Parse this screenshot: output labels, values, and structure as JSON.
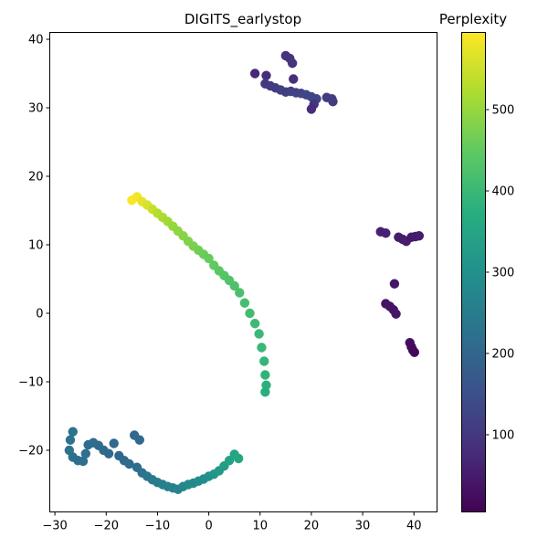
{
  "chart_data": {
    "type": "scatter",
    "title": "DIGITS_earlystop",
    "xlabel": "",
    "ylabel": "",
    "xlim": [
      -31,
      44.5
    ],
    "ylim": [
      -29,
      41
    ],
    "xticks": [
      -30,
      -20,
      -10,
      0,
      10,
      20,
      30,
      40
    ],
    "yticks": [
      -20,
      -10,
      0,
      10,
      20,
      30,
      40
    ],
    "grid": false,
    "colormap": "viridis",
    "colorbar": {
      "label": "Perplexity",
      "range": [
        5,
        595
      ],
      "ticks": [
        100,
        200,
        300,
        400,
        500
      ]
    },
    "series": [
      {
        "points": [
          {
            "x": 15,
            "y": 37.6,
            "c": 90
          },
          {
            "x": 15.8,
            "y": 37.2,
            "c": 92
          },
          {
            "x": 16.3,
            "y": 36.5,
            "c": 94
          },
          {
            "x": 9,
            "y": 35,
            "c": 70
          },
          {
            "x": 11.2,
            "y": 34.7,
            "c": 80
          },
          {
            "x": 16.5,
            "y": 34.2,
            "c": 85
          },
          {
            "x": 11,
            "y": 33.5,
            "c": 100
          },
          {
            "x": 12,
            "y": 33.2,
            "c": 105
          },
          {
            "x": 13,
            "y": 32.9,
            "c": 110
          },
          {
            "x": 14,
            "y": 32.6,
            "c": 112
          },
          {
            "x": 15,
            "y": 32.3,
            "c": 115
          },
          {
            "x": 16,
            "y": 32.4,
            "c": 118
          },
          {
            "x": 17,
            "y": 32.2,
            "c": 120
          },
          {
            "x": 18,
            "y": 32.1,
            "c": 122
          },
          {
            "x": 19,
            "y": 31.9,
            "c": 124
          },
          {
            "x": 20,
            "y": 31.6,
            "c": 126
          },
          {
            "x": 21,
            "y": 31.3,
            "c": 128
          },
          {
            "x": 20.5,
            "y": 30.5,
            "c": 90
          },
          {
            "x": 20,
            "y": 29.8,
            "c": 80
          },
          {
            "x": 23,
            "y": 31.5,
            "c": 110
          },
          {
            "x": 24,
            "y": 31.3,
            "c": 112
          },
          {
            "x": 24.2,
            "y": 30.9,
            "c": 108
          },
          {
            "x": 33.5,
            "y": 11.9,
            "c": 60
          },
          {
            "x": 34.5,
            "y": 11.7,
            "c": 62
          },
          {
            "x": 37,
            "y": 11.1,
            "c": 50
          },
          {
            "x": 37.8,
            "y": 10.8,
            "c": 52
          },
          {
            "x": 38.5,
            "y": 10.5,
            "c": 54
          },
          {
            "x": 39.5,
            "y": 11.1,
            "c": 45
          },
          {
            "x": 40.3,
            "y": 11.2,
            "c": 48
          },
          {
            "x": 41,
            "y": 11.3,
            "c": 50
          },
          {
            "x": 36.2,
            "y": 4.3,
            "c": 40
          },
          {
            "x": 34.5,
            "y": 1.4,
            "c": 35
          },
          {
            "x": 35.3,
            "y": 1.0,
            "c": 37
          },
          {
            "x": 36,
            "y": 0.5,
            "c": 38
          },
          {
            "x": 36.5,
            "y": -0.1,
            "c": 40
          },
          {
            "x": 39.2,
            "y": -4.3,
            "c": 25
          },
          {
            "x": 39.5,
            "y": -4.9,
            "c": 22
          },
          {
            "x": 39.8,
            "y": -5.4,
            "c": 20
          },
          {
            "x": 40.1,
            "y": -5.7,
            "c": 18
          },
          {
            "x": -15,
            "y": 16.5,
            "c": 592
          },
          {
            "x": -14,
            "y": 17.0,
            "c": 585
          },
          {
            "x": -13,
            "y": 16.3,
            "c": 575
          },
          {
            "x": -12,
            "y": 15.8,
            "c": 560
          },
          {
            "x": -11,
            "y": 15.2,
            "c": 545
          },
          {
            "x": -10,
            "y": 14.6,
            "c": 530
          },
          {
            "x": -9,
            "y": 14.0,
            "c": 520
          },
          {
            "x": -8,
            "y": 13.4,
            "c": 510
          },
          {
            "x": -7,
            "y": 12.7,
            "c": 500
          },
          {
            "x": -6,
            "y": 12.0,
            "c": 495
          },
          {
            "x": -5,
            "y": 11.3,
            "c": 488
          },
          {
            "x": -4,
            "y": 10.5,
            "c": 480
          },
          {
            "x": -3,
            "y": 9.8,
            "c": 475
          },
          {
            "x": -2,
            "y": 9.2,
            "c": 468
          },
          {
            "x": -1,
            "y": 8.6,
            "c": 460
          },
          {
            "x": 0,
            "y": 8.0,
            "c": 455
          },
          {
            "x": 1,
            "y": 7.0,
            "c": 448
          },
          {
            "x": 2,
            "y": 6.2,
            "c": 442
          },
          {
            "x": 3,
            "y": 5.5,
            "c": 436
          },
          {
            "x": 4,
            "y": 4.8,
            "c": 430
          },
          {
            "x": 5,
            "y": 4.0,
            "c": 425
          },
          {
            "x": 6,
            "y": 3.0,
            "c": 420
          },
          {
            "x": 7,
            "y": 1.5,
            "c": 415
          },
          {
            "x": 8,
            "y": 0.0,
            "c": 410
          },
          {
            "x": 9,
            "y": -1.5,
            "c": 405
          },
          {
            "x": 9.8,
            "y": -3.0,
            "c": 400
          },
          {
            "x": 10.3,
            "y": -5.0,
            "c": 398
          },
          {
            "x": 10.8,
            "y": -7.0,
            "c": 392
          },
          {
            "x": 11,
            "y": -9.0,
            "c": 386
          },
          {
            "x": 11.2,
            "y": -10.5,
            "c": 380
          },
          {
            "x": 11,
            "y": -11.5,
            "c": 375
          },
          {
            "x": -26.5,
            "y": -17.3,
            "c": 232
          },
          {
            "x": -27,
            "y": -18.5,
            "c": 230
          },
          {
            "x": -27.2,
            "y": -20,
            "c": 228
          },
          {
            "x": -26.5,
            "y": -21,
            "c": 226
          },
          {
            "x": -25.5,
            "y": -21.5,
            "c": 222
          },
          {
            "x": -24.5,
            "y": -21.6,
            "c": 220
          },
          {
            "x": -24,
            "y": -20.5,
            "c": 218
          },
          {
            "x": -23.5,
            "y": -19.2,
            "c": 215
          },
          {
            "x": -22.5,
            "y": -18.9,
            "c": 212
          },
          {
            "x": -21.5,
            "y": -19.3,
            "c": 210
          },
          {
            "x": -20.5,
            "y": -20.0,
            "c": 208
          },
          {
            "x": -19.5,
            "y": -20.5,
            "c": 205
          },
          {
            "x": -18.5,
            "y": -19.0,
            "c": 203
          },
          {
            "x": -17.5,
            "y": -20.8,
            "c": 202
          },
          {
            "x": -16.5,
            "y": -21.5,
            "c": 200
          },
          {
            "x": -15.5,
            "y": -22.0,
            "c": 210
          },
          {
            "x": -14.5,
            "y": -17.8,
            "c": 205
          },
          {
            "x": -13.5,
            "y": -18.5,
            "c": 207
          },
          {
            "x": -14,
            "y": -22.5,
            "c": 215
          },
          {
            "x": -13,
            "y": -23.3,
            "c": 225
          },
          {
            "x": -12,
            "y": -23.8,
            "c": 235
          },
          {
            "x": -11,
            "y": -24.3,
            "c": 245
          },
          {
            "x": -10,
            "y": -24.7,
            "c": 252
          },
          {
            "x": -9,
            "y": -25.0,
            "c": 258
          },
          {
            "x": -8,
            "y": -25.3,
            "c": 262
          },
          {
            "x": -7,
            "y": -25.5,
            "c": 266
          },
          {
            "x": -6,
            "y": -25.7,
            "c": 270
          },
          {
            "x": -5,
            "y": -25.3,
            "c": 274
          },
          {
            "x": -4,
            "y": -25.0,
            "c": 278
          },
          {
            "x": -3,
            "y": -24.8,
            "c": 282
          },
          {
            "x": -2,
            "y": -24.5,
            "c": 288
          },
          {
            "x": -1,
            "y": -24.2,
            "c": 294
          },
          {
            "x": 0,
            "y": -23.8,
            "c": 300
          },
          {
            "x": 1,
            "y": -23.5,
            "c": 310
          },
          {
            "x": 2,
            "y": -23.0,
            "c": 320
          },
          {
            "x": 3,
            "y": -22.3,
            "c": 330
          },
          {
            "x": 4,
            "y": -21.5,
            "c": 340
          },
          {
            "x": 5,
            "y": -20.6,
            "c": 350
          },
          {
            "x": 5.8,
            "y": -21.2,
            "c": 355
          }
        ]
      }
    ]
  }
}
